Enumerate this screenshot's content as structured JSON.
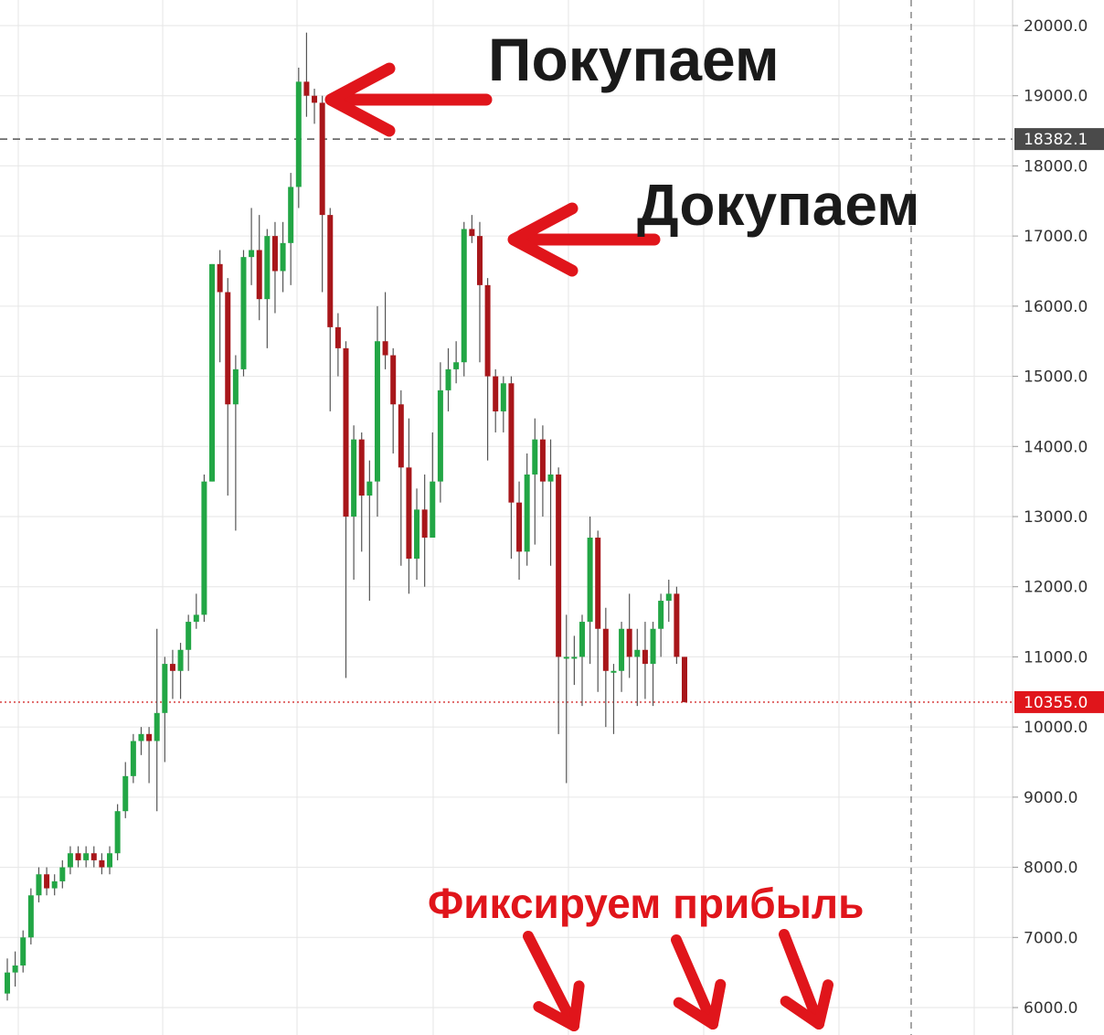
{
  "chart_data": {
    "type": "candlestick",
    "ylim": [
      5800,
      20500
    ],
    "y_ticks": [
      "6000.0",
      "7000.0",
      "8000.0",
      "9000.0",
      "10000.0",
      "11000.0",
      "12000.0",
      "13000.0",
      "14000.0",
      "15000.0",
      "16000.0",
      "17000.0",
      "18000.0",
      "19000.0",
      "20000.0"
    ],
    "y_tick_values": [
      6000,
      7000,
      8000,
      9000,
      10000,
      11000,
      12000,
      13000,
      14000,
      15000,
      16000,
      17000,
      18000,
      19000,
      20000
    ],
    "grid": true,
    "y_axis_position": "right",
    "price_lines": [
      {
        "label": "18382.1",
        "value": 18382.1,
        "style": "dashed",
        "color": "#555555"
      },
      {
        "label": "10355.0",
        "value": 10355.0,
        "style": "dotted",
        "color": "#d32f2f"
      }
    ],
    "candles": [
      [
        6200,
        6500,
        6100,
        6700
      ],
      [
        6500,
        6600,
        6300,
        6800
      ],
      [
        6600,
        7000,
        6500,
        7100
      ],
      [
        7000,
        7600,
        6900,
        7700
      ],
      [
        7600,
        7900,
        7500,
        8000
      ],
      [
        7900,
        7700,
        7600,
        8000
      ],
      [
        7700,
        7800,
        7600,
        7900
      ],
      [
        7800,
        8000,
        7700,
        8100
      ],
      [
        8000,
        8200,
        7900,
        8300
      ],
      [
        8200,
        8100,
        8000,
        8300
      ],
      [
        8100,
        8200,
        8000,
        8300
      ],
      [
        8200,
        8100,
        8000,
        8300
      ],
      [
        8100,
        8000,
        7900,
        8200
      ],
      [
        8000,
        8200,
        7900,
        8300
      ],
      [
        8200,
        8800,
        8100,
        8900
      ],
      [
        8800,
        9300,
        8700,
        9500
      ],
      [
        9300,
        9800,
        9200,
        9900
      ],
      [
        9800,
        9900,
        9600,
        10000
      ],
      [
        9900,
        9800,
        9200,
        10000
      ],
      [
        9800,
        10200,
        8800,
        11400
      ],
      [
        10200,
        10900,
        9500,
        11000
      ],
      [
        10900,
        10800,
        10400,
        11100
      ],
      [
        10800,
        11100,
        10400,
        11200
      ],
      [
        11100,
        11500,
        10800,
        11600
      ],
      [
        11500,
        11600,
        11400,
        11900
      ],
      [
        11600,
        13500,
        11500,
        13600
      ],
      [
        13500,
        16600,
        13500,
        16600
      ],
      [
        16600,
        16200,
        15200,
        16800
      ],
      [
        16200,
        14600,
        13300,
        16400
      ],
      [
        14600,
        15100,
        12800,
        15300
      ],
      [
        15100,
        16700,
        15000,
        16800
      ],
      [
        16700,
        16800,
        16300,
        17400
      ],
      [
        16800,
        16100,
        15800,
        17300
      ],
      [
        16100,
        17000,
        15400,
        17100
      ],
      [
        17000,
        16500,
        15900,
        17200
      ],
      [
        16500,
        16900,
        16200,
        17200
      ],
      [
        16900,
        17700,
        16300,
        17900
      ],
      [
        17700,
        19200,
        17400,
        19400
      ],
      [
        19200,
        19000,
        18700,
        19900
      ],
      [
        19000,
        18900,
        18600,
        19100
      ],
      [
        18900,
        17300,
        16200,
        19000
      ],
      [
        17300,
        15700,
        14500,
        17400
      ],
      [
        15700,
        15400,
        15000,
        15900
      ],
      [
        15400,
        13000,
        10700,
        15500
      ],
      [
        13000,
        14100,
        12100,
        14300
      ],
      [
        14100,
        13300,
        12500,
        14200
      ],
      [
        13300,
        13500,
        11800,
        13800
      ],
      [
        13500,
        15500,
        13000,
        16000
      ],
      [
        15500,
        15300,
        15100,
        16200
      ],
      [
        15300,
        14600,
        13900,
        15400
      ],
      [
        14600,
        13700,
        12300,
        14800
      ],
      [
        13700,
        12400,
        11900,
        14400
      ],
      [
        12400,
        13100,
        12100,
        13400
      ],
      [
        13100,
        12700,
        12000,
        13600
      ],
      [
        12700,
        13500,
        12800,
        14200
      ],
      [
        13500,
        14800,
        13200,
        15200
      ],
      [
        14800,
        15100,
        14500,
        15400
      ],
      [
        15100,
        15200,
        14900,
        15500
      ],
      [
        15200,
        17100,
        15000,
        17200
      ],
      [
        17100,
        17000,
        16900,
        17300
      ],
      [
        17000,
        16300,
        15200,
        17200
      ],
      [
        16300,
        15000,
        13800,
        16400
      ],
      [
        15000,
        14500,
        14200,
        15100
      ],
      [
        14500,
        14900,
        14200,
        15000
      ],
      [
        14900,
        13200,
        12400,
        15000
      ],
      [
        13200,
        12500,
        12100,
        13500
      ],
      [
        12500,
        13600,
        12300,
        13900
      ],
      [
        13600,
        14100,
        12600,
        14400
      ],
      [
        14100,
        13500,
        13000,
        14300
      ],
      [
        13500,
        13600,
        12300,
        14100
      ],
      [
        13600,
        11000,
        9900,
        13700
      ],
      [
        11000,
        11000,
        9200,
        11600
      ],
      [
        11000,
        11000,
        10600,
        11300
      ],
      [
        11000,
        11500,
        10300,
        11600
      ],
      [
        11500,
        12700,
        10900,
        13000
      ],
      [
        12700,
        11400,
        10500,
        12800
      ],
      [
        11400,
        10800,
        10000,
        11700
      ],
      [
        10800,
        10800,
        9900,
        10900
      ],
      [
        10800,
        11400,
        10500,
        11500
      ],
      [
        11400,
        11000,
        10700,
        11900
      ],
      [
        11000,
        11100,
        10300,
        11400
      ],
      [
        11100,
        10900,
        10400,
        11500
      ],
      [
        10900,
        11400,
        10300,
        11500
      ],
      [
        11400,
        11800,
        11000,
        11900
      ],
      [
        11800,
        11900,
        11500,
        12100
      ],
      [
        11900,
        11000,
        10900,
        12000
      ],
      [
        11000,
        10355,
        10350,
        11000
      ]
    ],
    "annotations": [
      {
        "text": "Покупаем",
        "price": 18900
      },
      {
        "text": "Докупаем",
        "price": 17000
      },
      {
        "text": "Фиксируем прибыль"
      }
    ]
  },
  "colors": {
    "up": "#22a645",
    "down": "#a8161a",
    "grid": "#e6e6e6",
    "annotation_black": "#1a1a1a",
    "annotation_red": "#e0151b",
    "axis_line": "#cccccc",
    "tag_dark": "#4a4a4a",
    "tag_red": "#e0151b"
  }
}
